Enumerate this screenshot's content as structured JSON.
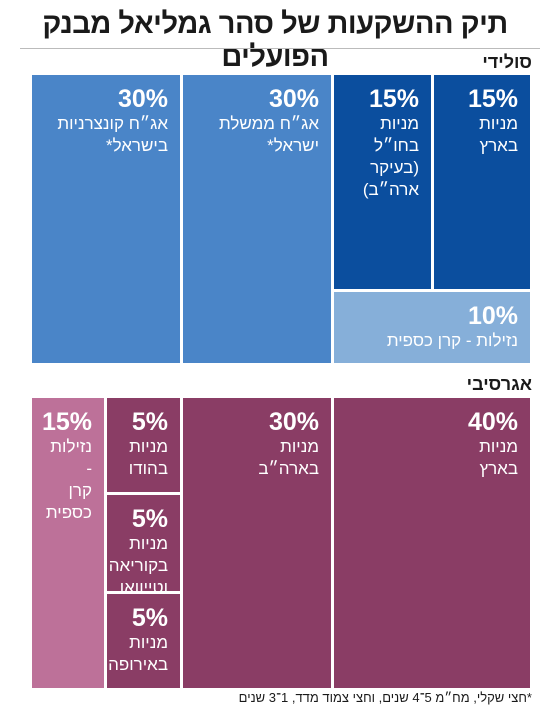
{
  "title": "תיק ההשקעות של סהר גמליאל מבנק הפועלים",
  "chart_data": {
    "type": "treemap",
    "groups": [
      {
        "name": "סולידי",
        "items": [
          {
            "value": "15%",
            "label": "מניות\nבארץ",
            "color": "#0b4e9e"
          },
          {
            "value": "15%",
            "label": "מניות\nבחו״ל\n(בעיקר\nארה״ב)",
            "color": "#0b4e9e"
          },
          {
            "value": "30%",
            "label": "אג״ח ממשלת\nישראל*",
            "color": "#4a85c8"
          },
          {
            "value": "30%",
            "label": "אג״ח קונצרניות\nבישראל*",
            "color": "#4a85c8"
          },
          {
            "value": "10%",
            "label": "נזילות - קרן כספית",
            "color": "#86afd9"
          }
        ]
      },
      {
        "name": "אגרסיבי",
        "items": [
          {
            "value": "40%",
            "label": "מניות\nבארץ",
            "color": "#8a3d65"
          },
          {
            "value": "30%",
            "label": "מניות\nבארה״ב",
            "color": "#8a3d65"
          },
          {
            "value": "5%",
            "label": "מניות\nבהודו",
            "color": "#8a3d65"
          },
          {
            "value": "5%",
            "label": "מניות\nבקוריאה\nוטייוואן",
            "color": "#8a3d65"
          },
          {
            "value": "5%",
            "label": "מניות\nבאירופה",
            "color": "#8a3d65"
          },
          {
            "value": "15%",
            "label": "נזילות -\nקרן\nכספית",
            "color": "#bd7199"
          }
        ]
      }
    ]
  },
  "footnote": "*חצי שקלי, מח״מ 5־4 שנים, וחצי צמוד מדד, 1־3 שנים"
}
